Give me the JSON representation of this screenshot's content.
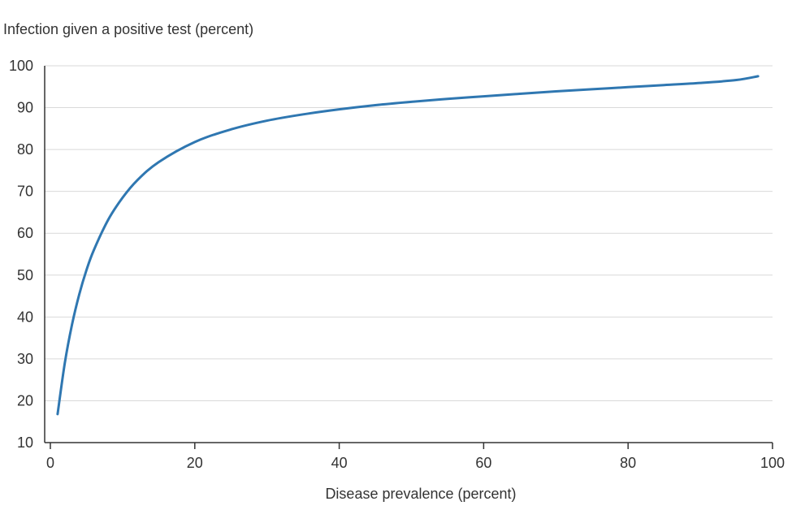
{
  "chart_data": {
    "type": "line",
    "title": "",
    "ylabel": "Infection given a positive test (percent)",
    "xlabel": "Disease prevalence (percent)",
    "xlim": [
      0,
      100
    ],
    "ylim": [
      10,
      100
    ],
    "x_ticks": [
      0,
      20,
      40,
      60,
      80,
      100
    ],
    "y_ticks": [
      10,
      20,
      30,
      40,
      50,
      60,
      70,
      80,
      90,
      100
    ],
    "grid": "horizontal",
    "line_color": "#2f77b1",
    "grid_color": "#d9d9d9",
    "axis_color": "#333333",
    "series": [
      {
        "x": [
          1,
          2,
          3,
          4,
          5,
          6,
          8,
          10,
          12,
          15,
          20,
          25,
          30,
          35,
          40,
          45,
          50,
          55,
          60,
          65,
          70,
          75,
          80,
          85,
          90,
          95,
          98
        ],
        "y": [
          16.8,
          29.0,
          38.2,
          45.4,
          51.2,
          55.9,
          63.2,
          68.5,
          72.6,
          77.0,
          81.8,
          84.8,
          86.9,
          88.4,
          89.6,
          90.6,
          91.4,
          92.1,
          92.7,
          93.3,
          93.9,
          94.4,
          94.9,
          95.4,
          95.9,
          96.6,
          97.5
        ]
      }
    ]
  }
}
